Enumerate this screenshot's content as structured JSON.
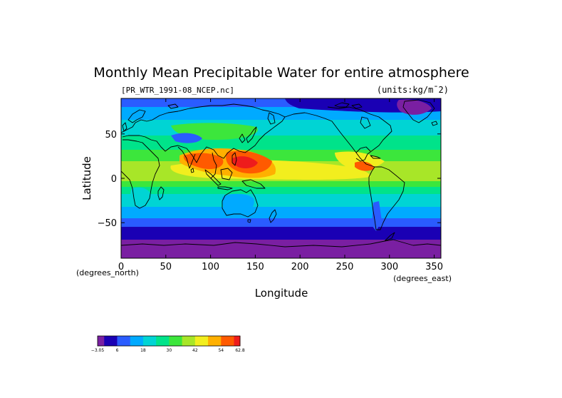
{
  "chart_data": {
    "type": "heatmap",
    "title": "Monthly Mean Precipitable Water for entire atmosphere",
    "file_label": "[PR_WTR_1991-08_NCEP.nc]",
    "units_label": "(units:kg/m¯2)",
    "xlabel": "Longitude",
    "ylabel": "Latitude",
    "x_units": "(degrees_east)",
    "y_units": "(degrees_north)",
    "xlim": [
      0,
      357.5
    ],
    "ylim": [
      -90,
      90
    ],
    "x_ticks": [
      0,
      50,
      100,
      150,
      200,
      250,
      300,
      350
    ],
    "x_tick_labels": [
      "0",
      "50",
      "100",
      "150",
      "200",
      "250",
      "300",
      "350"
    ],
    "y_ticks": [
      50,
      0,
      -50
    ],
    "y_tick_labels": [
      "50",
      "0",
      "−50"
    ],
    "colorbar": {
      "min": -3.05,
      "max": 62.8,
      "labels": [
        "−3.05",
        "6",
        "18",
        "30",
        "42",
        "54",
        "62.8"
      ],
      "label_values": [
        -3.05,
        6,
        18,
        30,
        42,
        54,
        62.8
      ],
      "level_values": [
        -3.05,
        0,
        6,
        12,
        18,
        24,
        30,
        36,
        42,
        48,
        54,
        60,
        62.8
      ],
      "colors": [
        "#7a1fa2",
        "#1a00b4",
        "#2a5cff",
        "#00aaff",
        "#00d4d4",
        "#00e38a",
        "#3ce63c",
        "#a8e628",
        "#f2ee1e",
        "#ffb000",
        "#ff5a00",
        "#ee1c1c",
        "#ff8a8a"
      ]
    },
    "zonal_mean_precipitable_water": {
      "latitudes": [
        -90,
        -80,
        -70,
        -60,
        -50,
        -40,
        -30,
        -20,
        -10,
        0,
        10,
        20,
        30,
        40,
        50,
        60,
        70,
        80,
        90
      ],
      "values": [
        1,
        3,
        6,
        9,
        13,
        17,
        22,
        30,
        40,
        44,
        52,
        46,
        36,
        27,
        22,
        18,
        14,
        11,
        9
      ]
    }
  }
}
